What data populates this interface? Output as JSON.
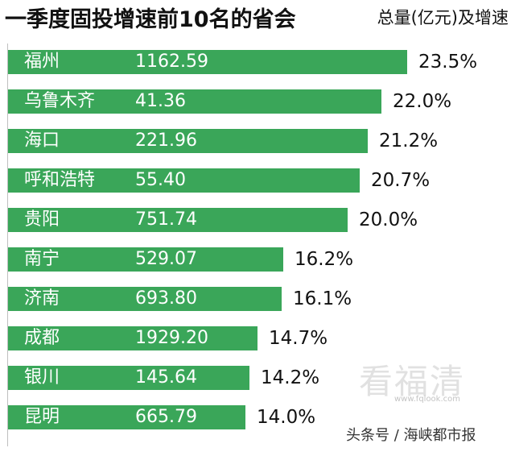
{
  "header": {
    "title": "一季度固投增速前10名的省会",
    "subtitle": "总量(亿元)及增速"
  },
  "chart_data": {
    "type": "bar",
    "orientation": "horizontal",
    "bar_color": "#3aa659",
    "categories": [
      "福州",
      "乌鲁木齐",
      "海口",
      "呼和浩特",
      "贵阳",
      "南宁",
      "济南",
      "成都",
      "银川",
      "昆明"
    ],
    "amounts": [
      "1162.59",
      "41.36",
      "221.96",
      "55.40",
      "751.74",
      "529.07",
      "693.80",
      "1929.20",
      "145.64",
      "665.79"
    ],
    "growth_labels": [
      "23.5%",
      "22.0%",
      "21.2%",
      "20.7%",
      "20.0%",
      "16.2%",
      "16.1%",
      "14.7%",
      "14.2%",
      "14.0%"
    ],
    "growth_values": [
      23.5,
      22.0,
      21.2,
      20.7,
      20.0,
      16.2,
      16.1,
      14.7,
      14.2,
      14.0
    ]
  },
  "watermark": {
    "logo_text": "看福清",
    "url": "www.fqlook.com",
    "credit": "头条号 / 海峡都市报"
  }
}
